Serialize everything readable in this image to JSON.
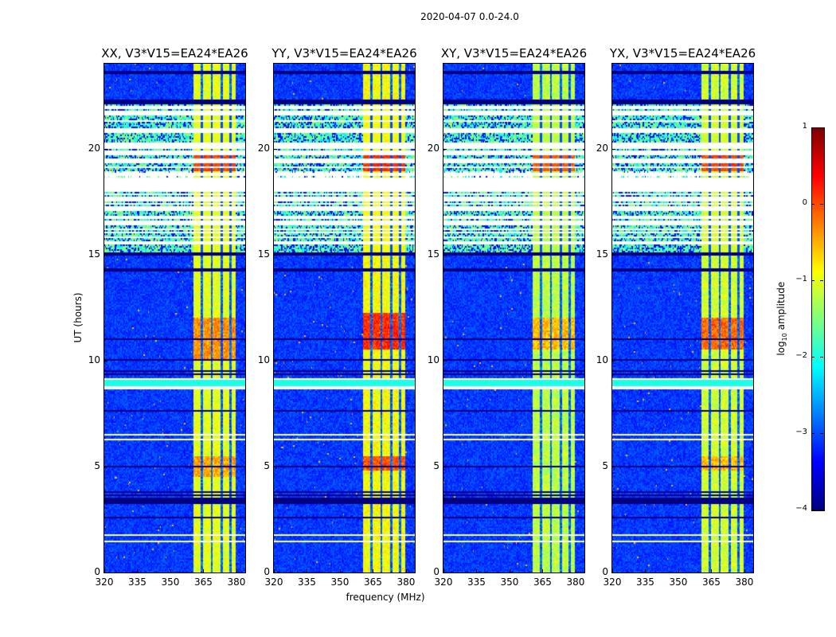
{
  "chart_data": {
    "type": "heatmap",
    "title": "2020-04-07 0.0-24.0",
    "xlabel": "frequency (MHz)",
    "ylabel": "UT (hours)",
    "xlim": [
      320,
      384
    ],
    "ylim": [
      0,
      24
    ],
    "xticks": [
      320,
      335,
      350,
      365,
      380
    ],
    "yticks": [
      0,
      5,
      10,
      15,
      20
    ],
    "colorbar": {
      "label_prefix": "log",
      "label_sub": "10",
      "label_suffix": " amplitude",
      "range": [
        -4,
        1
      ],
      "ticks": [
        1,
        0,
        -1,
        -2,
        -3,
        -4
      ],
      "tick_labels": [
        "1",
        "0",
        "−1",
        "−2",
        "−3",
        "−4"
      ],
      "colormap": "jet"
    },
    "background_log_amplitude": -3.1,
    "rfi_band_mhz": [
      360.5,
      380
    ],
    "rfi_band_gaps_mhz": [
      364.5,
      369,
      373.5,
      377.5
    ],
    "flagged_hours": [
      [
        1.45,
        1.52
      ],
      [
        1.75,
        1.82
      ],
      [
        6.2,
        6.3
      ],
      [
        6.45,
        6.55
      ],
      [
        8.6,
        8.75
      ],
      [
        9.05,
        9.12
      ]
    ],
    "cyan_hours": [
      [
        8.75,
        9.05
      ]
    ],
    "dark_rows_hours": [
      2.6,
      3.3,
      3.45,
      3.65,
      3.8,
      5.0,
      7.6,
      9.35,
      9.5,
      10.0,
      11.0,
      14.2,
      14.3,
      15.0,
      22.1,
      22.2,
      23.55
    ],
    "sparse_flagged_range_hours": [
      15.05,
      22.05
    ],
    "panels": [
      {
        "title": "XX, V3*V15=EA24*EA26",
        "band_level": -1.0,
        "peaks": [
          {
            "hours": [
              10,
              12
            ],
            "level": -0.2
          },
          {
            "hours": [
              4.5,
              5.5
            ],
            "level": -0.3
          },
          {
            "hours": [
              18.9,
              19.9
            ],
            "level": 0.2
          }
        ]
      },
      {
        "title": "YY, V3*V15=EA24*EA26",
        "band_level": -0.9,
        "peaks": [
          {
            "hours": [
              10.5,
              12.2
            ],
            "level": 0.3
          },
          {
            "hours": [
              4.8,
              5.5
            ],
            "level": 0.1
          },
          {
            "hours": [
              18.9,
              19.9
            ],
            "level": 0.3
          }
        ]
      },
      {
        "title": "XY, V3*V15=EA24*EA26",
        "band_level": -1.2,
        "peaks": [
          {
            "hours": [
              10.5,
              12
            ],
            "level": -0.4
          },
          {
            "hours": [
              18.9,
              19.9
            ],
            "level": 0.1
          }
        ]
      },
      {
        "title": "YX, V3*V15=EA24*EA26",
        "band_level": -1.1,
        "peaks": [
          {
            "hours": [
              10.5,
              12
            ],
            "level": 0.0
          },
          {
            "hours": [
              4.8,
              5.5
            ],
            "level": -0.4
          },
          {
            "hours": [
              18.9,
              19.9
            ],
            "level": 0.2
          }
        ]
      }
    ]
  }
}
